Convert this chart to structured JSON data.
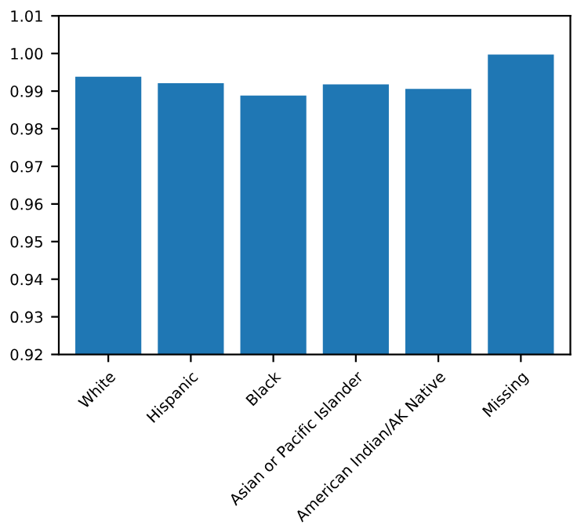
{
  "chart_data": {
    "type": "bar",
    "categories": [
      "White",
      "Hispanic",
      "Black",
      "Asian or Pacific Islander",
      "American Indian/AK Native",
      "Missing"
    ],
    "values": [
      0.9938,
      0.9921,
      0.9888,
      0.9918,
      0.9906,
      0.9997
    ],
    "color": "#1f77b4",
    "ylim": [
      0.92,
      1.01
    ],
    "yticks": [
      {
        "value": 0.92,
        "label": "0.92"
      },
      {
        "value": 0.93,
        "label": "0.93"
      },
      {
        "value": 0.94,
        "label": "0.94"
      },
      {
        "value": 0.95,
        "label": "0.95"
      },
      {
        "value": 0.96,
        "label": "0.96"
      },
      {
        "value": 0.97,
        "label": "0.97"
      },
      {
        "value": 0.98,
        "label": "0.98"
      },
      {
        "value": 0.99,
        "label": "0.99"
      },
      {
        "value": 1.0,
        "label": "1.00"
      },
      {
        "value": 1.01,
        "label": "1.01"
      }
    ],
    "grid": false
  }
}
